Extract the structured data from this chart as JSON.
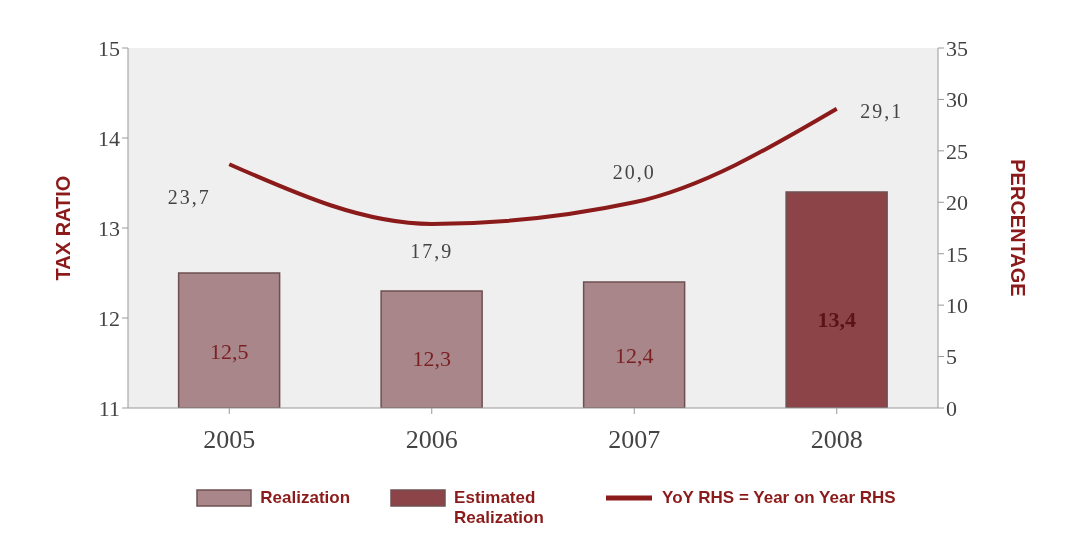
{
  "chart_data": {
    "type": "bar",
    "ylabel": "TAX RATIO",
    "y2label": "PERCENTAGE",
    "categories": [
      "2005",
      "2006",
      "2007",
      "2008"
    ],
    "stacked": true,
    "series": [
      {
        "name": "Realization",
        "color": "#a88689",
        "values": [
          12.5,
          12.3,
          12.4,
          null
        ],
        "value_labels": [
          "12,5",
          "12,3",
          "12,4",
          null
        ]
      },
      {
        "name": "Estimated Realization",
        "color": "#8c4448",
        "values": [
          null,
          null,
          null,
          13.4
        ],
        "value_labels": [
          null,
          null,
          null,
          "13,4"
        ]
      },
      {
        "name": "YoY RHS = Year on Year RHS",
        "type": "line",
        "axis": "y2",
        "color": "#8b1a1a",
        "values": [
          23.7,
          17.9,
          20.0,
          29.1
        ],
        "value_labels": [
          "23,7",
          "17,9",
          "20,0",
          "29,1"
        ]
      }
    ],
    "ylim": [
      11,
      15
    ],
    "yticks": [
      11,
      12,
      13,
      14,
      15
    ],
    "y2lim": [
      0,
      35
    ],
    "y2ticks": [
      0,
      5,
      10,
      15,
      20,
      25,
      30,
      35
    ],
    "grid": false,
    "legend": "bottom",
    "marker": "none",
    "line_style": "solid"
  }
}
